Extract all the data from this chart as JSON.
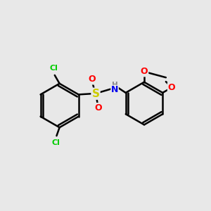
{
  "bg_color": "#e8e8e8",
  "bond_color": "#000000",
  "bond_width": 1.8,
  "atom_colors": {
    "Cl": "#00cc00",
    "S": "#cccc00",
    "O": "#ff0000",
    "N": "#0000ee",
    "H": "#888888",
    "C": "#000000"
  }
}
